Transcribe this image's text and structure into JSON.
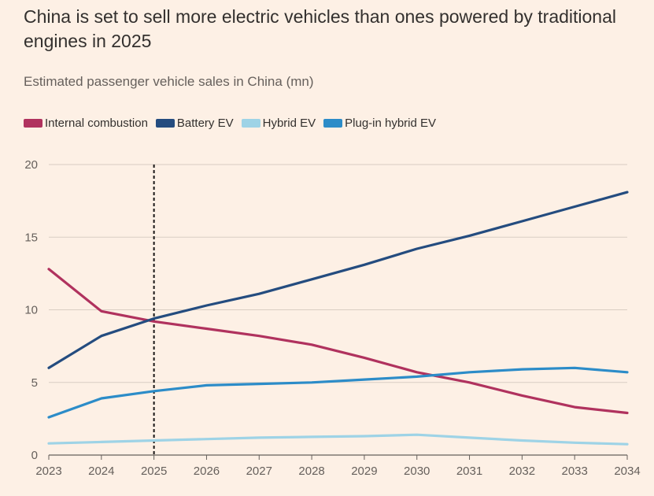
{
  "chart_data": {
    "type": "line",
    "title": "China is set to sell more electric vehicles than ones powered by traditional engines in 2025",
    "subtitle": "Estimated passenger vehicle sales in China (mn)",
    "xlabel": "",
    "ylabel": "",
    "x": [
      2023,
      2024,
      2025,
      2026,
      2027,
      2028,
      2029,
      2030,
      2031,
      2032,
      2033,
      2034
    ],
    "x_tick_labels": [
      "2023",
      "2024",
      "2025",
      "2026",
      "2027",
      "2028",
      "2029",
      "2030",
      "2031",
      "2032",
      "2033",
      "2034"
    ],
    "ylim": [
      0,
      20
    ],
    "y_ticks": [
      0,
      5,
      10,
      15,
      20
    ],
    "y_tick_labels": [
      "0",
      "5",
      "10",
      "15",
      "20"
    ],
    "grid": true,
    "marker_line": {
      "x": 2025,
      "style": "dashed"
    },
    "legend_position": "top-left",
    "series": [
      {
        "key": "ice",
        "name": "Internal combustion",
        "color": "#b0325e",
        "values": [
          12.8,
          9.9,
          9.2,
          8.7,
          8.2,
          7.6,
          6.7,
          5.7,
          5.0,
          4.1,
          3.3,
          2.9
        ]
      },
      {
        "key": "bev",
        "name": "Battery EV",
        "color": "#244c7f",
        "values": [
          6.0,
          8.2,
          9.4,
          10.3,
          11.1,
          12.1,
          13.1,
          14.2,
          15.1,
          16.1,
          17.1,
          18.1
        ]
      },
      {
        "key": "hev",
        "name": "Hybrid EV",
        "color": "#9ed3e6",
        "values": [
          0.8,
          0.9,
          1.0,
          1.1,
          1.2,
          1.25,
          1.3,
          1.4,
          1.2,
          1.0,
          0.85,
          0.75
        ]
      },
      {
        "key": "phev",
        "name": "Plug-in hybrid EV",
        "color": "#2c8cc8",
        "values": [
          2.6,
          3.9,
          4.4,
          4.8,
          4.9,
          5.0,
          5.2,
          5.4,
          5.7,
          5.9,
          6.0,
          5.7
        ]
      }
    ]
  }
}
